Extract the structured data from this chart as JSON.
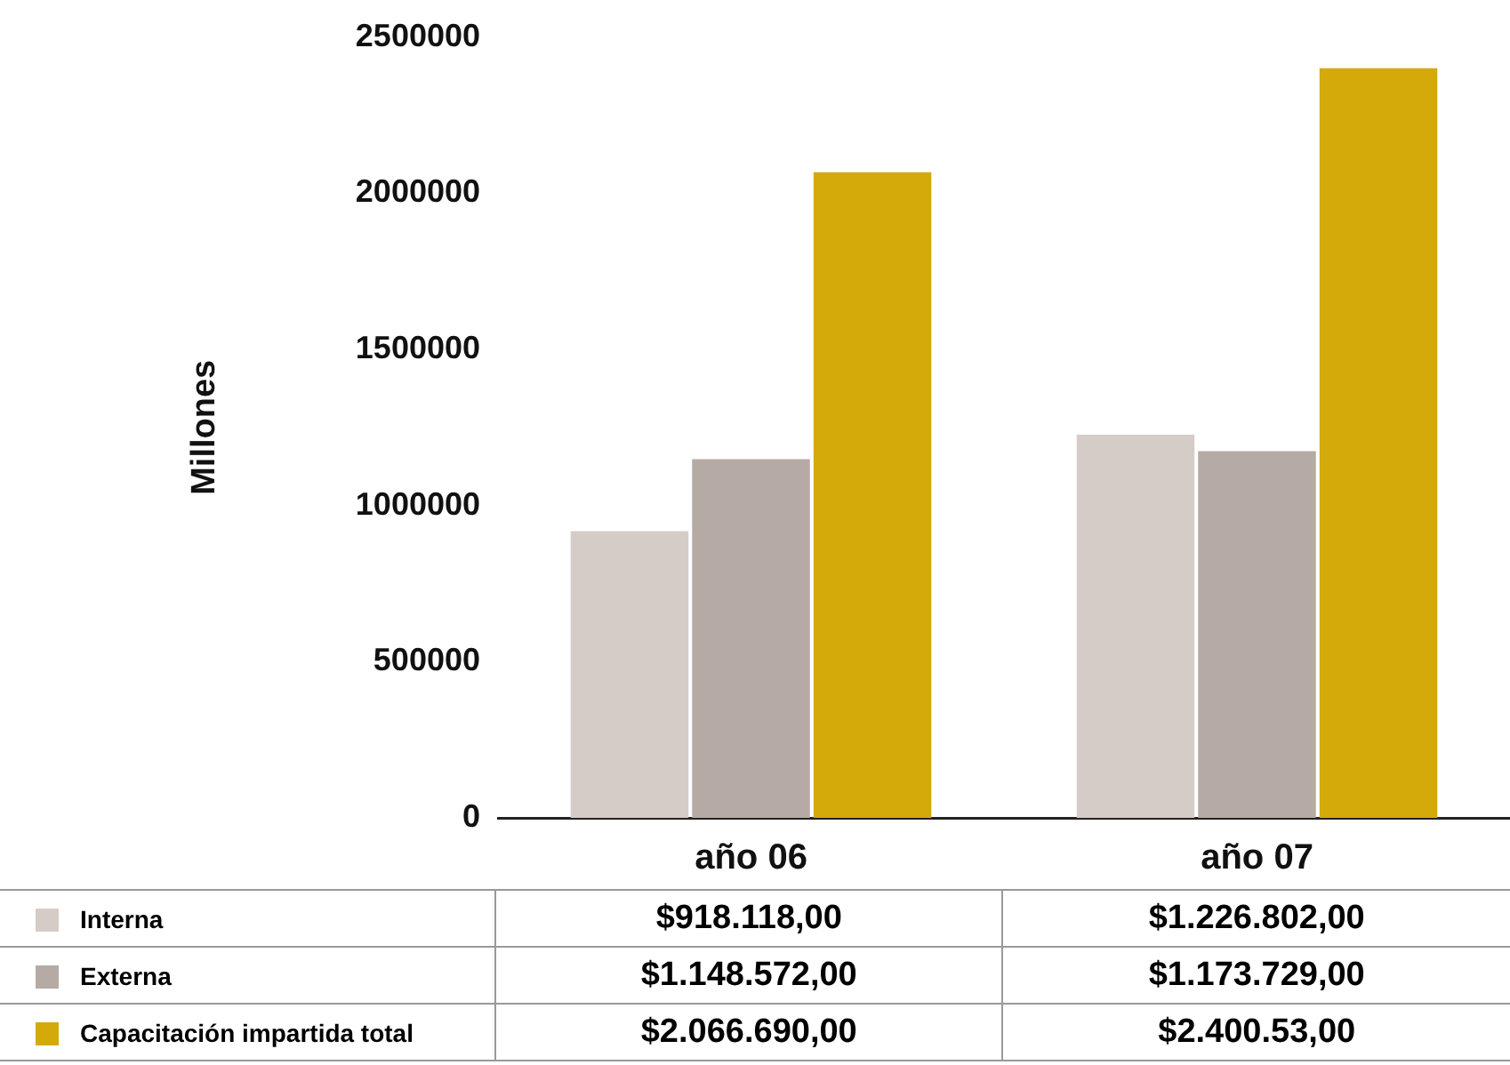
{
  "chart_data": {
    "type": "bar",
    "ylabel": "Millones",
    "categories": [
      "año 06",
      "año 07"
    ],
    "series": [
      {
        "name": "Interna",
        "color": "#d5ccc8",
        "values": [
          918118,
          1226802
        ],
        "value_labels": [
          "$918.118,00",
          "$1.226.802,00"
        ]
      },
      {
        "name": "Externa",
        "color": "#b5aba4",
        "values": [
          1148572,
          1173729
        ],
        "value_labels": [
          "$1.148.572,00",
          "$1.173.729,00"
        ]
      },
      {
        "name": "Capacitación impartida total",
        "color": "#d4a90a",
        "values": [
          2066690,
          2400000
        ],
        "value_labels": [
          "$2.066.690,00",
          "$2.400.53,00"
        ]
      }
    ],
    "ylim": [
      0,
      2500000
    ],
    "yticks": [
      0,
      500000,
      1000000,
      1500000,
      2000000,
      2500000
    ],
    "grid": false,
    "legend": "bottom"
  }
}
